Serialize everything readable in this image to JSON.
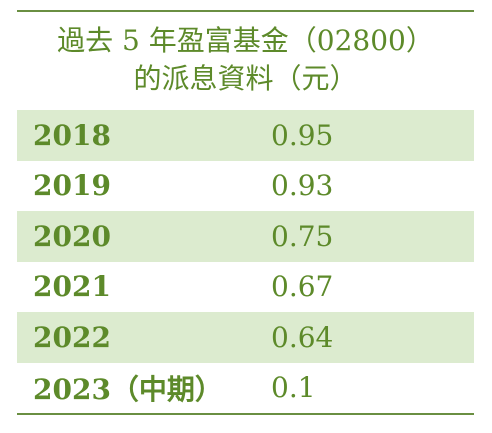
{
  "title": {
    "line1": "過去 5 年盈富基金（02800）",
    "line2": "的派息資料（元）"
  },
  "rows": [
    {
      "year": "2018",
      "value": "0.95"
    },
    {
      "year": "2019",
      "value": "0.93"
    },
    {
      "year": "2020",
      "value": "0.75"
    },
    {
      "year": "2021",
      "value": "0.67"
    },
    {
      "year": "2022",
      "value": "0.64"
    },
    {
      "year": "2023（中期）",
      "value": "0.1"
    }
  ],
  "colors": {
    "text": "#5d8a2a",
    "rule": "#6a8f42",
    "row_shade": "#dcebcf"
  }
}
